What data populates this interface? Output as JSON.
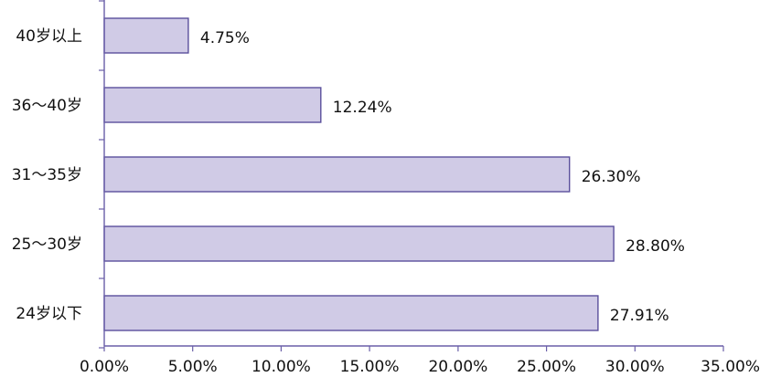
{
  "chart_data": {
    "type": "bar",
    "orientation": "horizontal",
    "title": "",
    "xlabel": "",
    "ylabel": "",
    "xlim": [
      0,
      35
    ],
    "grid": false,
    "legend": "none",
    "bar_fill": "#d0cbe6",
    "bar_stroke": "#5a4f9c",
    "axis_color": "#6a5fa8",
    "categories": [
      "40岁以上",
      "36～40岁",
      "31～35岁",
      "25～30岁",
      "24岁以下"
    ],
    "values": [
      4.75,
      12.24,
      26.3,
      28.8,
      27.91
    ],
    "data_labels": [
      "4.75%",
      "12.24%",
      "26.30%",
      "28.80%",
      "27.91%"
    ],
    "x_ticks": [
      0,
      5,
      10,
      15,
      20,
      25,
      30,
      35
    ],
    "x_tick_labels": [
      "0.00%",
      "5.00%",
      "10.00%",
      "15.00%",
      "20.00%",
      "25.00%",
      "30.00%",
      "35.00%"
    ]
  }
}
